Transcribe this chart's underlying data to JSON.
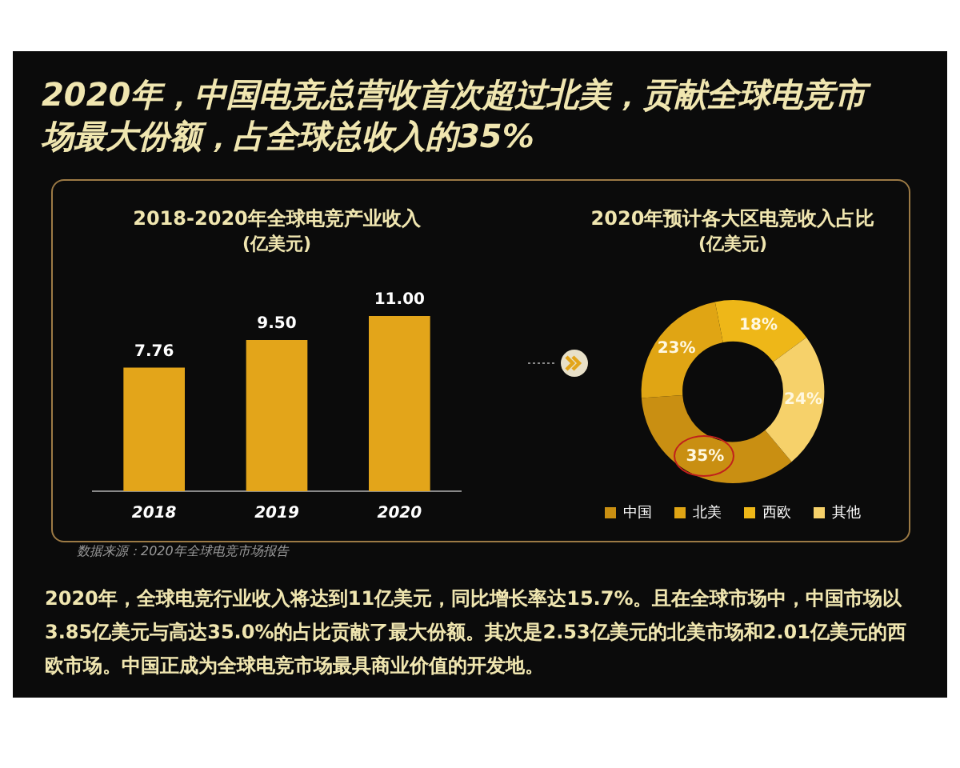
{
  "chart_data": [
    {
      "type": "other",
      "title": "2020年，中国电竞总营收首次超过北美，贡献全球电竞市场最大份额，占全球总收入的35%"
    },
    {
      "type": "bar",
      "title": "2018-2020年全球电竞产业收入",
      "subtitle": "(亿美元)",
      "categories": [
        "2018",
        "2019",
        "2020"
      ],
      "values": [
        7.76,
        9.5,
        11.0
      ],
      "value_labels": [
        "7.76",
        "9.50",
        "11.00"
      ],
      "color": "#e3a51a",
      "annotations": [
        "数据来源：2020年全球电竞市场报告"
      ]
    },
    {
      "type": "donut",
      "title": "2020年预计各大区电竞收入占比",
      "subtitle": "(亿美元)",
      "categories": [
        "中国",
        "北美",
        "西欧",
        "其他"
      ],
      "values": [
        35,
        23,
        18,
        24
      ],
      "value_labels": [
        "35%",
        "23%",
        "18%",
        "24%"
      ],
      "colors": [
        "#c98f12",
        "#e0a514",
        "#eeb718",
        "#f6d16a"
      ],
      "legend": "bottom"
    },
    {
      "type": "other",
      "annotations": [
        "2020年，全球电竞行业收入将达到11亿美元，同比增长率达15.7%。且在全球市场中，中国市场以3.85亿美元与高达35.0%的占比贡献了最大份额。其次是2.53亿美元的北美市场和2.01亿美元的西欧市场。中国正成为全球电竞市场最具商业价值的开发地。"
      ]
    }
  ]
}
